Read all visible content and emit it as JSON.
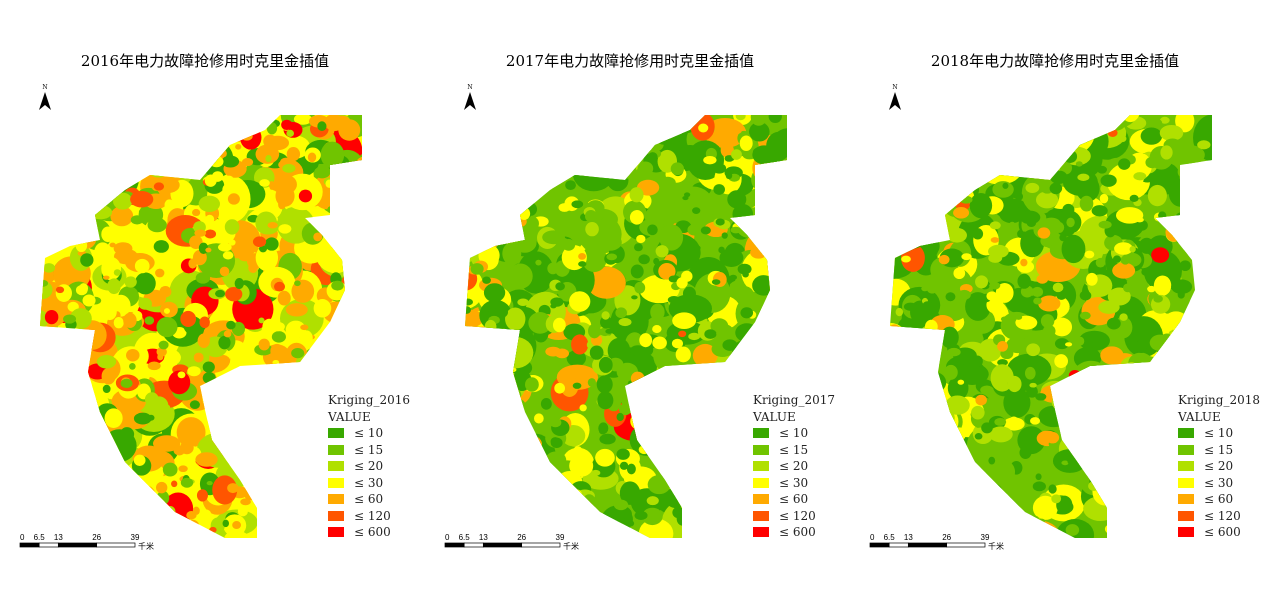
{
  "panels": [
    {
      "title": "2016年电力故障抢修用时克里金插值",
      "legend_title": "Kriging_2016",
      "bias": [
        0.12,
        0.12,
        0.14,
        0.22,
        0.3,
        0.06,
        0.04
      ]
    },
    {
      "title": "2017年电力故障抢修用时克里金插值",
      "legend_title": "Kriging_2017",
      "bias": [
        0.38,
        0.24,
        0.14,
        0.14,
        0.08,
        0.015,
        0.005
      ]
    },
    {
      "title": "2018年电力故障抢修用时克里金插值",
      "legend_title": "Kriging_2018",
      "bias": [
        0.36,
        0.24,
        0.15,
        0.17,
        0.07,
        0.005,
        0.005
      ]
    }
  ],
  "legend": {
    "field": "VALUE",
    "classes": [
      {
        "label": "≤  10",
        "color": "#38a800"
      },
      {
        "label": "≤  15",
        "color": "#70c400"
      },
      {
        "label": "≤  20",
        "color": "#b0e000"
      },
      {
        "label": "≤  30",
        "color": "#ffff00"
      },
      {
        "label": "≤  60",
        "color": "#ffaa00"
      },
      {
        "label": "≤  120",
        "color": "#ff5500"
      },
      {
        "label": "≤  600",
        "color": "#ff0000"
      }
    ]
  },
  "north_label": "N",
  "scale_bar": {
    "ticks": [
      "0",
      "6.5",
      "13",
      "26",
      "39"
    ],
    "unit": "千米"
  }
}
